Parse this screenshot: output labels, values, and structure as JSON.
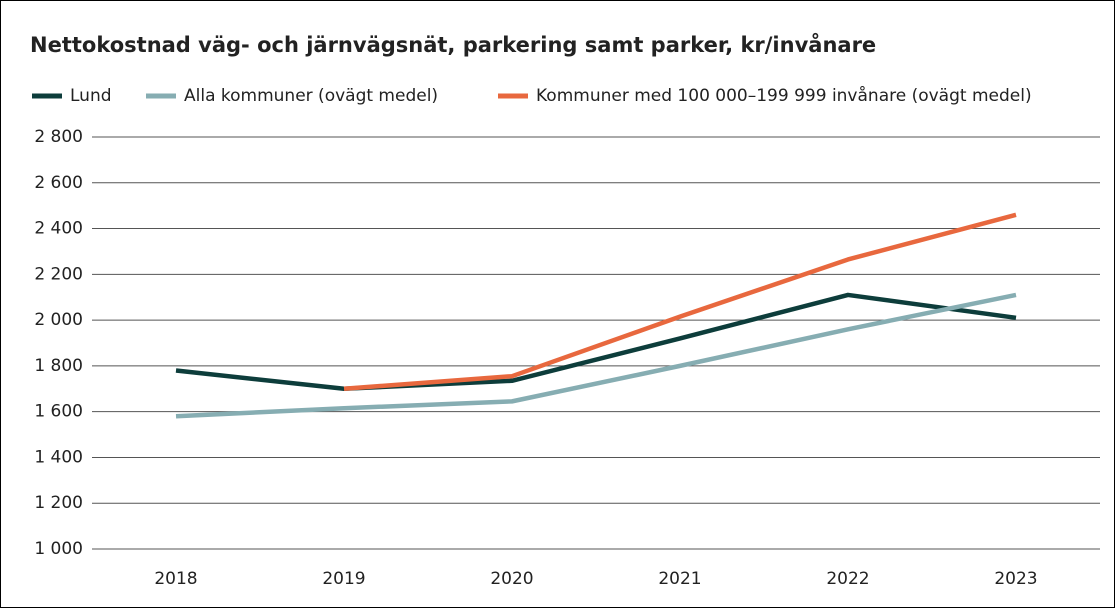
{
  "chart_data": {
    "type": "line",
    "title": "Nettokostnad väg- och järnvägsnät, parkering samt parker, kr/invånare",
    "categories": [
      "2018",
      "2019",
      "2020",
      "2021",
      "2022",
      "2023"
    ],
    "series": [
      {
        "name": "Lund",
        "color": "#0d3d3b",
        "values": [
          1780,
          1700,
          1735,
          1920,
          2110,
          2010
        ]
      },
      {
        "name": "Alla kommuner (ovägt medel)",
        "color": "#86adb2",
        "values": [
          1580,
          1615,
          1645,
          1800,
          1960,
          2110
        ]
      },
      {
        "name": "Kommuner med 100 000–199 999 invånare (ovägt medel)",
        "color": "#e8683e",
        "values": [
          null,
          1700,
          1755,
          2015,
          2265,
          2460
        ]
      }
    ],
    "ylim": [
      1000,
      2800
    ],
    "yticks": [
      {
        "value": 1000,
        "label": "1 000"
      },
      {
        "value": 1200,
        "label": "1 200"
      },
      {
        "value": 1400,
        "label": "1 400"
      },
      {
        "value": 1600,
        "label": "1 600"
      },
      {
        "value": 1800,
        "label": "1 800"
      },
      {
        "value": 2000,
        "label": "2 000"
      },
      {
        "value": 2200,
        "label": "2 200"
      },
      {
        "value": 2400,
        "label": "2 400"
      },
      {
        "value": 2600,
        "label": "2 600"
      },
      {
        "value": 2800,
        "label": "2 800"
      }
    ],
    "grid": true,
    "legend": "top"
  }
}
